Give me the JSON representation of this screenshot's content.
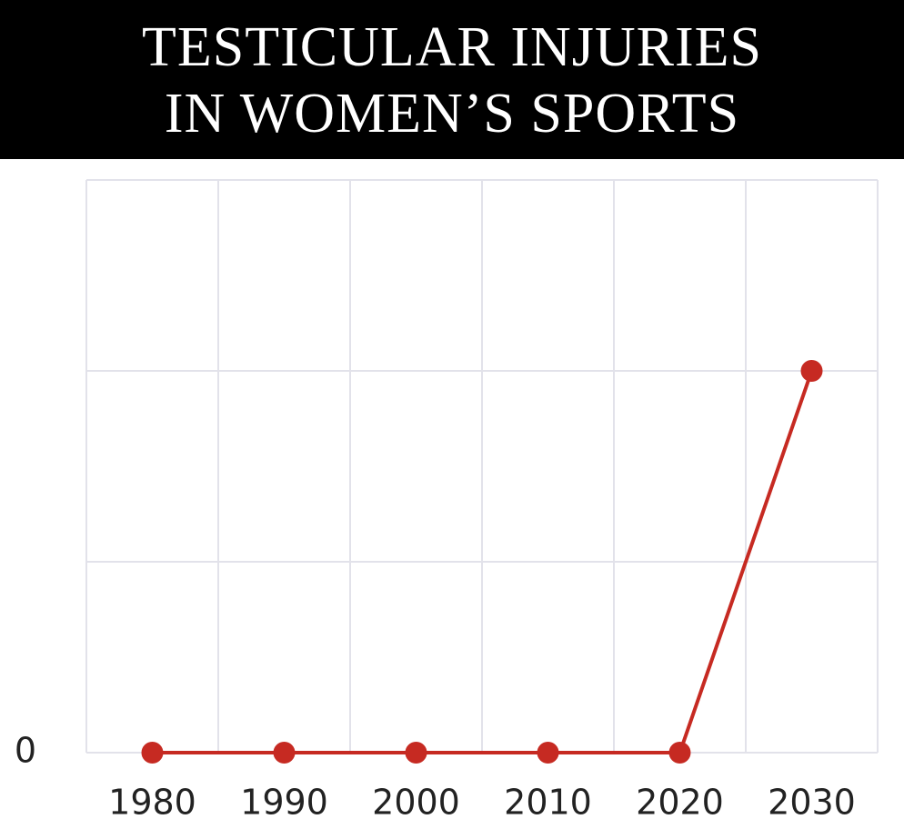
{
  "chart_data": {
    "type": "line",
    "title": [
      "TESTICULAR INJURIES",
      "IN WOMEN’S SPORTS"
    ],
    "categories": [
      "1980",
      "1990",
      "2000",
      "2010",
      "2020",
      "2030"
    ],
    "series": [
      {
        "color": "#c62a22",
        "values": [
          0,
          0,
          0,
          0,
          0,
          2
        ]
      }
    ],
    "ylim": [
      0,
      3
    ],
    "yticks": [
      0
    ],
    "y_gridlines": [
      0,
      1,
      2,
      3
    ],
    "grid": true
  }
}
